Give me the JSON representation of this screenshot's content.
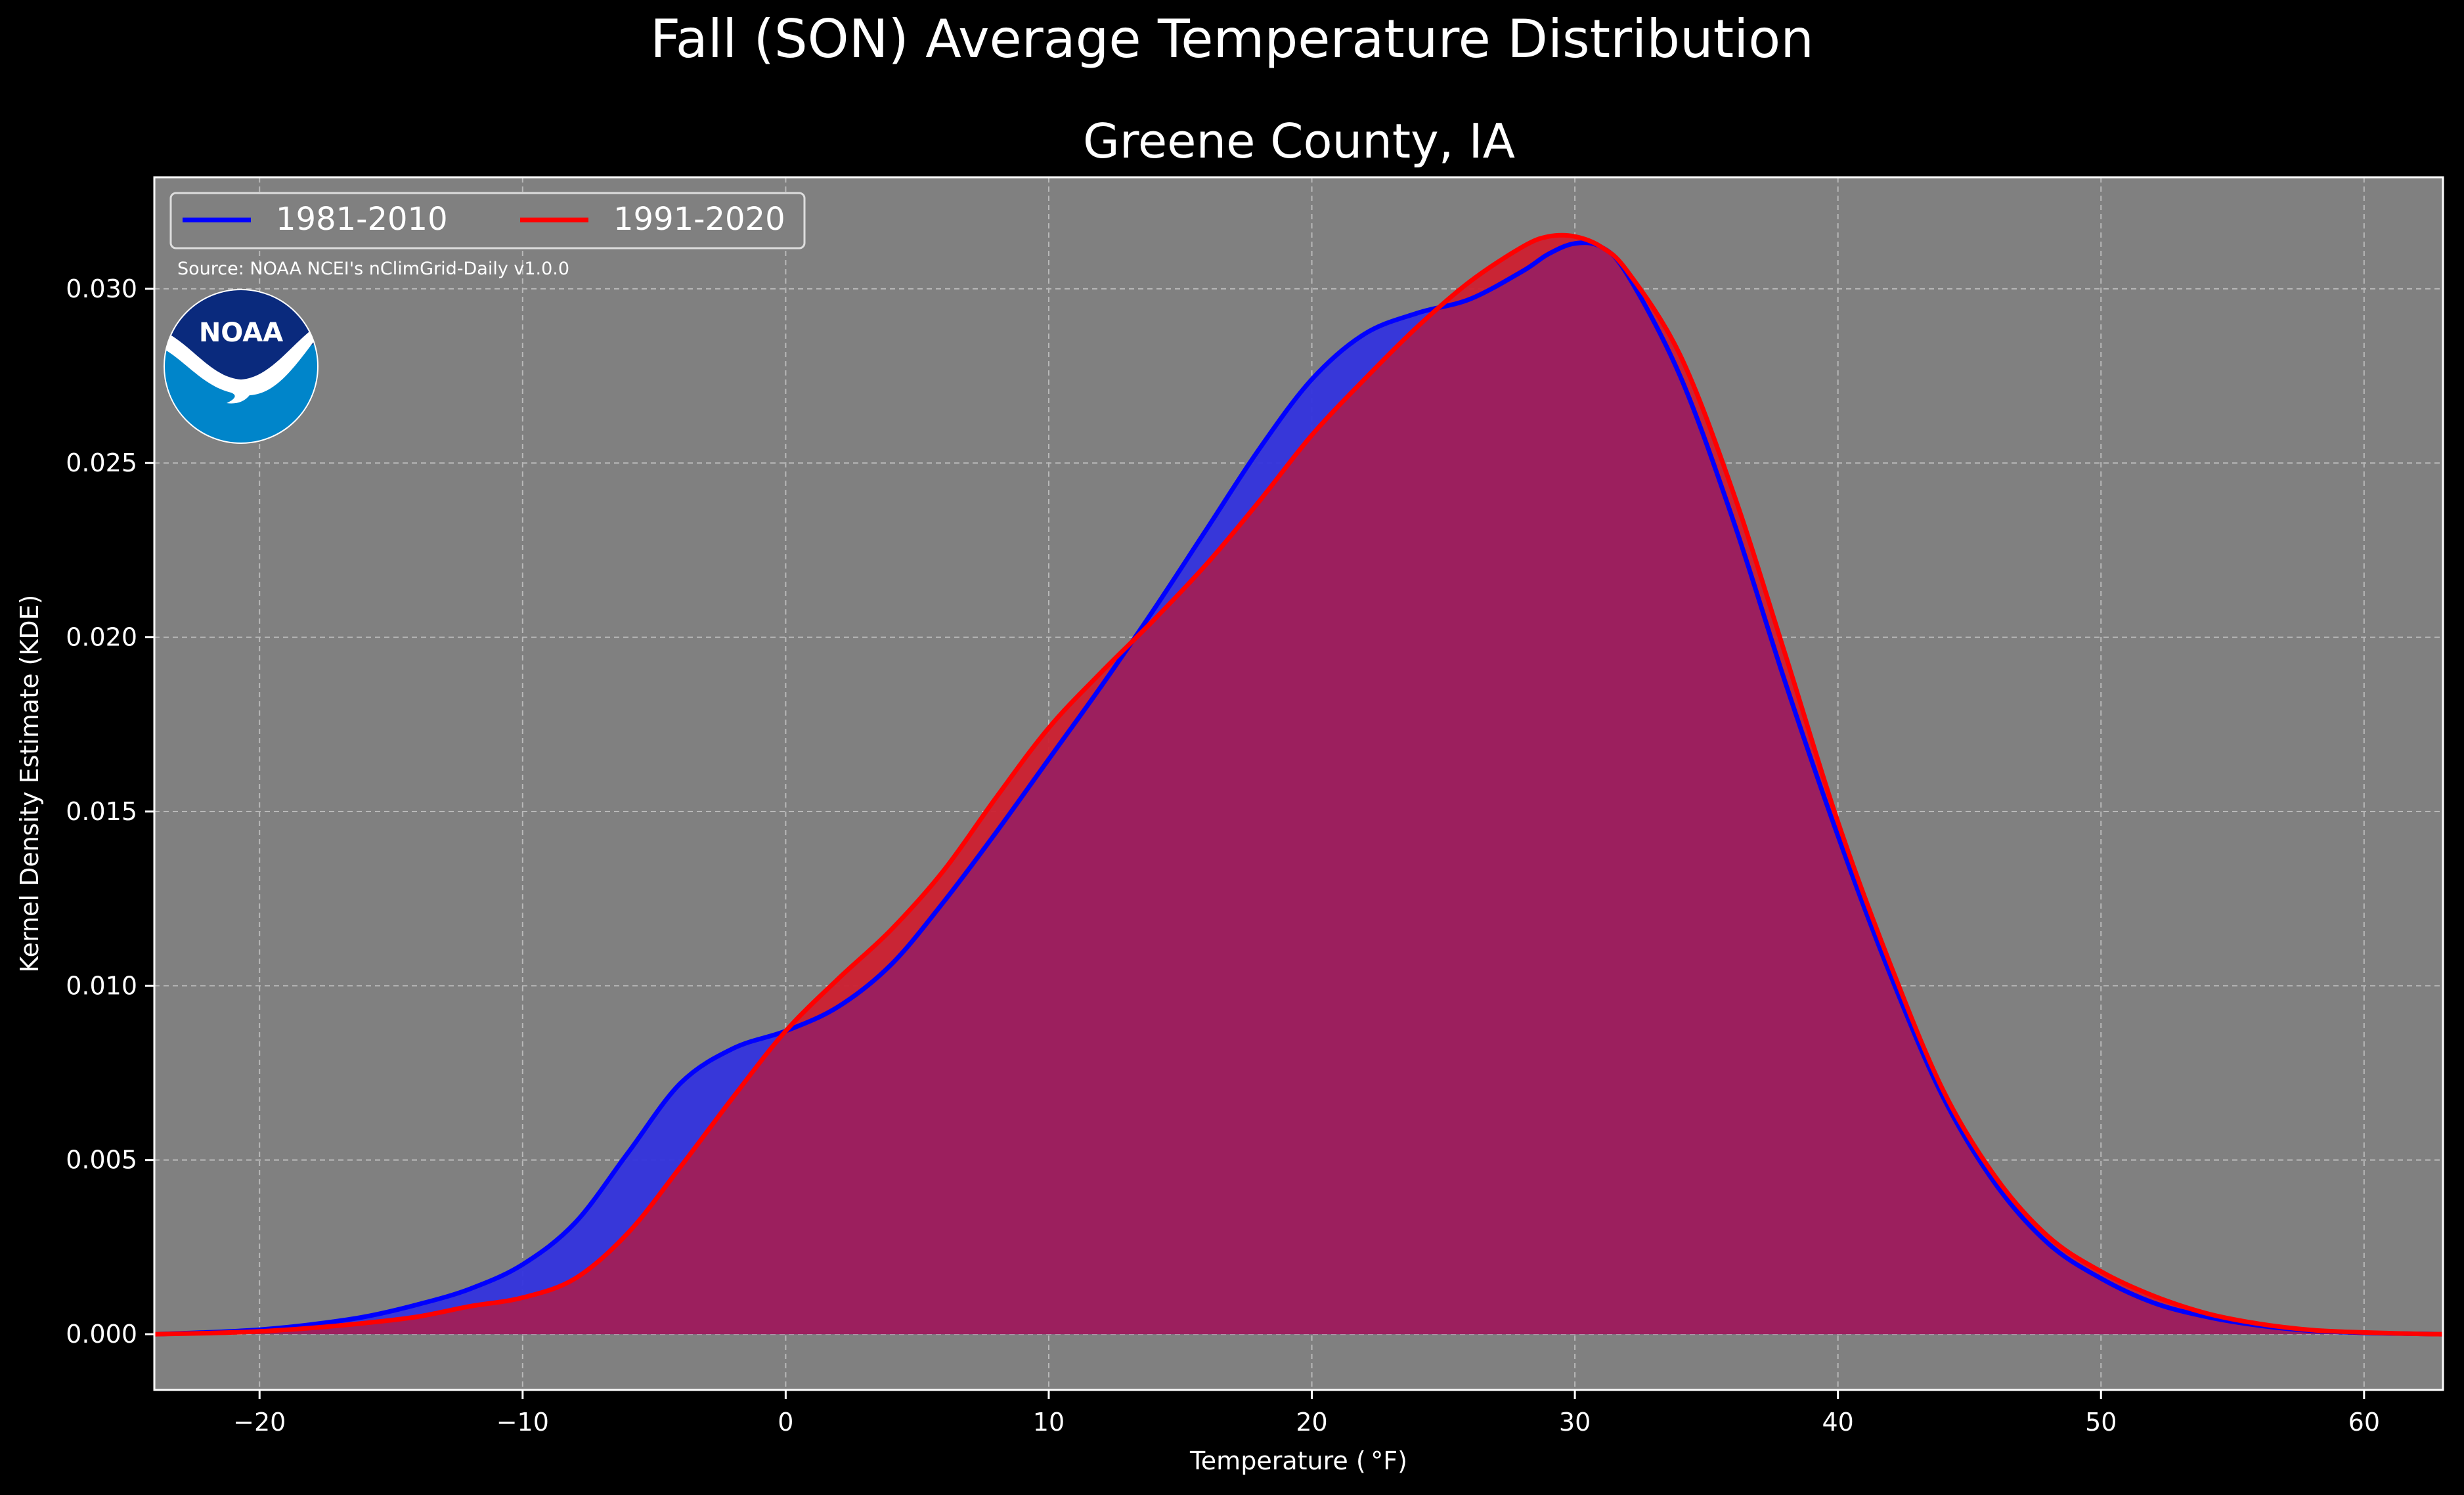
{
  "chart_data": {
    "type": "area",
    "title": "Fall (SON) Average Temperature Distribution",
    "subtitle": "Greene County, IA",
    "xlabel": "Temperature ( °F)",
    "ylabel": "Kernel Density Estimate (KDE)",
    "xlim": [
      -24,
      63
    ],
    "ylim": [
      -0.0016,
      0.0332
    ],
    "xticks": [
      -20,
      -10,
      0,
      10,
      20,
      30,
      40,
      50,
      60
    ],
    "xtick_labels": [
      "−20",
      "−10",
      "0",
      "10",
      "20",
      "30",
      "40",
      "50",
      "60"
    ],
    "yticks": [
      0,
      0.005,
      0.01,
      0.015,
      0.02,
      0.025,
      0.03
    ],
    "ytick_labels": [
      "0.000",
      "0.005",
      "0.010",
      "0.015",
      "0.020",
      "0.025",
      "0.030"
    ],
    "grid": true,
    "legend_position": "top-left",
    "legend_ncol": 2,
    "x": [
      -24,
      -22,
      -20,
      -18,
      -16,
      -14,
      -12,
      -10,
      -8,
      -6,
      -4,
      -2,
      0,
      2,
      4,
      6,
      8,
      10,
      12,
      14,
      16,
      18,
      20,
      22,
      24,
      26,
      28,
      29,
      30,
      31,
      32,
      34,
      36,
      38,
      40,
      42,
      44,
      46,
      48,
      50,
      52,
      54,
      56,
      58,
      60,
      62,
      63
    ],
    "series": [
      {
        "name": "1981-2010",
        "color": "#0000ff",
        "fill": "#3333dd",
        "values": [
          0,
          5e-05,
          0.00013,
          0.00028,
          0.0005,
          0.00085,
          0.0013,
          0.002,
          0.0032,
          0.0052,
          0.0072,
          0.0082,
          0.0087,
          0.0094,
          0.0106,
          0.0124,
          0.0144,
          0.0165,
          0.0186,
          0.0208,
          0.0231,
          0.0254,
          0.0274,
          0.0287,
          0.0293,
          0.0297,
          0.0305,
          0.031,
          0.0313,
          0.0312,
          0.0304,
          0.0275,
          0.0234,
          0.0187,
          0.0143,
          0.0103,
          0.0068,
          0.0043,
          0.0026,
          0.0016,
          0.0009,
          0.0005,
          0.00025,
          0.0001,
          4e-05,
          1e-05,
          0
        ]
      },
      {
        "name": "1991-2020",
        "color": "#ff0000",
        "fill": "#cc2030",
        "values": [
          0,
          3e-05,
          8e-05,
          0.00018,
          0.00032,
          0.0005,
          0.0008,
          0.00105,
          0.0016,
          0.0029,
          0.0048,
          0.0068,
          0.0087,
          0.0102,
          0.0116,
          0.0133,
          0.0154,
          0.0174,
          0.019,
          0.0205,
          0.0221,
          0.0239,
          0.0258,
          0.0274,
          0.0289,
          0.0302,
          0.0312,
          0.0315,
          0.0315,
          0.0312,
          0.0305,
          0.0281,
          0.0242,
          0.0195,
          0.0147,
          0.0106,
          0.007,
          0.0045,
          0.0028,
          0.0018,
          0.0011,
          0.0006,
          0.0003,
          0.00012,
          5e-05,
          1e-05,
          0
        ]
      }
    ],
    "overlap_fill": "#9c1f5e",
    "annotation": "Source: NOAA NCEI's nClimGrid-Daily v1.0.0",
    "logo": {
      "icon": "noaa-logo-icon",
      "text": "NOAA",
      "colors": {
        "top": "#0a2a7d",
        "bottom": "#0085ca",
        "bird": "#ffffff"
      }
    },
    "colors": {
      "background": "#000000",
      "plot_background": "#808080",
      "grid": "#b8b8b8",
      "axes": "#ffffff",
      "text": "#ffffff"
    }
  }
}
